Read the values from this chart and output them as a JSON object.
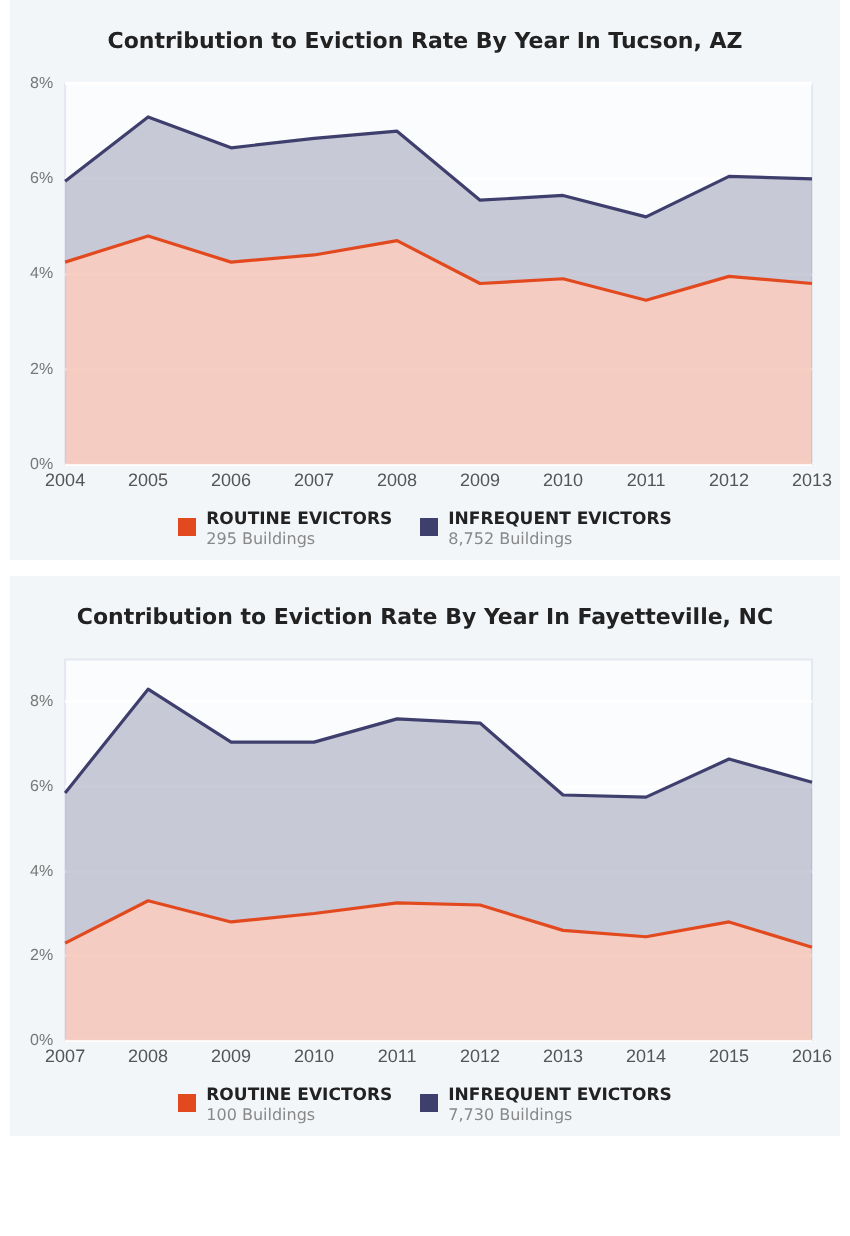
{
  "chart_data": [
    {
      "type": "area",
      "title": "Contribution to Eviction Rate By Year In Tucson, AZ",
      "stacked": true,
      "grid": "y",
      "legend": "bottom",
      "categories": [
        "2004",
        "2005",
        "2006",
        "2007",
        "2008",
        "2009",
        "2010",
        "2011",
        "2012",
        "2013"
      ],
      "ylim": [
        0,
        8
      ],
      "yticks": [
        {
          "value": 0,
          "label": "0%"
        },
        {
          "value": 2,
          "label": "2%"
        },
        {
          "value": 4,
          "label": "4%"
        },
        {
          "value": 6,
          "label": "6%"
        },
        {
          "value": 8,
          "label": "8%"
        }
      ],
      "series": [
        {
          "name": "ROUTINE EVICTORS",
          "color": "#e2491e",
          "values": [
            4.25,
            4.8,
            4.25,
            4.4,
            4.7,
            3.8,
            3.9,
            3.45,
            3.95,
            3.8
          ]
        },
        {
          "name": "INFREQUENT EVICTORS",
          "color": "#3f3f6e",
          "values": [
            1.7,
            2.5,
            2.4,
            2.45,
            2.3,
            1.75,
            1.75,
            1.75,
            2.1,
            2.2
          ]
        }
      ],
      "annotations": [
        "295 Buildings",
        "8,752 Buildings"
      ]
    },
    {
      "type": "area",
      "title": "Contribution to Eviction Rate By Year In Fayetteville, NC",
      "stacked": true,
      "grid": "y",
      "legend": "bottom",
      "categories": [
        "2007",
        "2008",
        "2009",
        "2010",
        "2011",
        "2012",
        "2013",
        "2014",
        "2015",
        "2016"
      ],
      "ylim": [
        0,
        9
      ],
      "yticks": [
        {
          "value": 0,
          "label": "0%"
        },
        {
          "value": 2,
          "label": "2%"
        },
        {
          "value": 4,
          "label": "4%"
        },
        {
          "value": 6,
          "label": "6%"
        },
        {
          "value": 8,
          "label": "8%"
        }
      ],
      "series": [
        {
          "name": "ROUTINE EVICTORS",
          "color": "#e2491e",
          "values": [
            2.3,
            3.3,
            2.8,
            3.0,
            3.25,
            3.2,
            2.6,
            2.45,
            2.8,
            2.2
          ]
        },
        {
          "name": "INFREQUENT EVICTORS",
          "color": "#3f3f6e",
          "values": [
            3.55,
            5.0,
            4.25,
            4.05,
            4.35,
            4.3,
            3.2,
            3.3,
            3.85,
            3.9
          ]
        }
      ],
      "annotations": [
        "100 Buildings",
        "7,730 Buildings"
      ]
    }
  ]
}
